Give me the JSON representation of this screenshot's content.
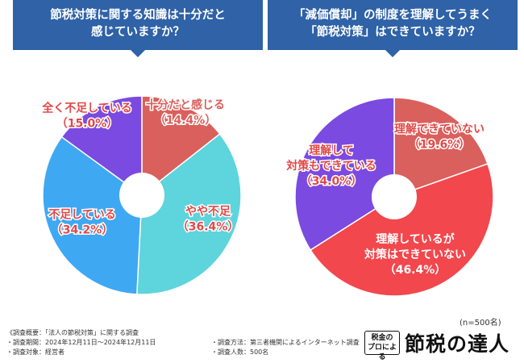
{
  "left_header": {
    "line1": "節税対策に関する知識は十分だと",
    "line2": "感じていますか？"
  },
  "right_header": {
    "line1": "「減価償却」の制度を理解してうまく",
    "line2": "「節税対策」はできていますか？"
  },
  "chart_data": [
    {
      "type": "pie",
      "title": "節税対策に関する知識は十分だと感じていますか？",
      "slices": [
        {
          "label": "十分だと感じる",
          "display_label": [
            "十分だと感じる"
          ],
          "value": 14.4,
          "value_label": "（14.4%）",
          "color": "#d9605c",
          "label_color": "#d9605c"
        },
        {
          "label": "やや不足",
          "display_label": [
            "やや不足"
          ],
          "value": 36.4,
          "value_label": "（36.4%）",
          "color": "#5ed4dc",
          "label_color": "#e24848"
        },
        {
          "label": "不足している",
          "display_label": [
            "不足している"
          ],
          "value": 34.2,
          "value_label": "（34.2%）",
          "color": "#3fa8f2",
          "label_color": "#e24848"
        },
        {
          "label": "全く不足している",
          "display_label": [
            "全く不足している"
          ],
          "value": 15.0,
          "value_label": "（15.0%）",
          "color": "#7b4ae0",
          "label_color": "#e24848"
        }
      ]
    },
    {
      "type": "pie",
      "title": "「減価償却」の制度を理解してうまく「節税対策」はできていますか？",
      "slices": [
        {
          "label": "理解できていない",
          "display_label": [
            "理解できていない"
          ],
          "value": 19.6,
          "value_label": "（19.6%）",
          "color": "#d9605c",
          "label_color": "#e24848"
        },
        {
          "label": "理解しているが対策はできていない",
          "display_label": [
            "理解しているが",
            "対策はできていない"
          ],
          "value": 46.4,
          "value_label": "（46.4%）",
          "color": "#f2474c",
          "label_color": "#ffffff"
        },
        {
          "label": "理解して対策もできている",
          "display_label": [
            "理解して",
            "対策もできている"
          ],
          "value": 34.0,
          "value_label": "（34.0%）",
          "color": "#7b4ae0",
          "label_color": "#e24848"
        }
      ]
    }
  ],
  "sample_size": "(n=500名)",
  "footer": {
    "overview": "《調査概要：「法人の節税対策」に関する調査",
    "period": "・調査期間：2024年12月11日～2024年12月11日",
    "target": "・調査対象：経営者",
    "method": "・調査方法：第三者機関によるインターネット調査",
    "count": "・調査人数：500名"
  },
  "brand": {
    "logo_line1": "税金の",
    "logo_line2": "プロによる",
    "name": "節税の達人"
  }
}
